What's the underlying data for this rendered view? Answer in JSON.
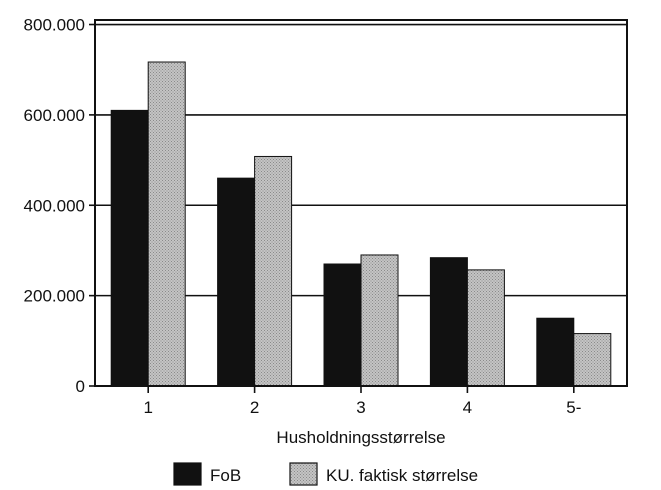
{
  "chart_data": {
    "type": "bar",
    "title": "",
    "xlabel": "Husholdningsstørrelse",
    "ylabel": "",
    "categories": [
      "1",
      "2",
      "3",
      "4",
      "5-"
    ],
    "series": [
      {
        "name": "FoB",
        "values": [
          610000,
          460000,
          270000,
          284000,
          150000
        ],
        "color": "#111111"
      },
      {
        "name": "KU. faktisk størrelse",
        "values": [
          717000,
          508000,
          290000,
          257000,
          116000
        ],
        "color": "#b8b8b8"
      }
    ],
    "ylim": [
      0,
      810000
    ],
    "yticks": [
      0,
      200000,
      400000,
      600000,
      800000
    ],
    "ytick_labels": [
      "0",
      "200.000",
      "400.000",
      "600.000",
      "800.000"
    ],
    "grid": "horizontal",
    "legend_position": "bottom"
  }
}
